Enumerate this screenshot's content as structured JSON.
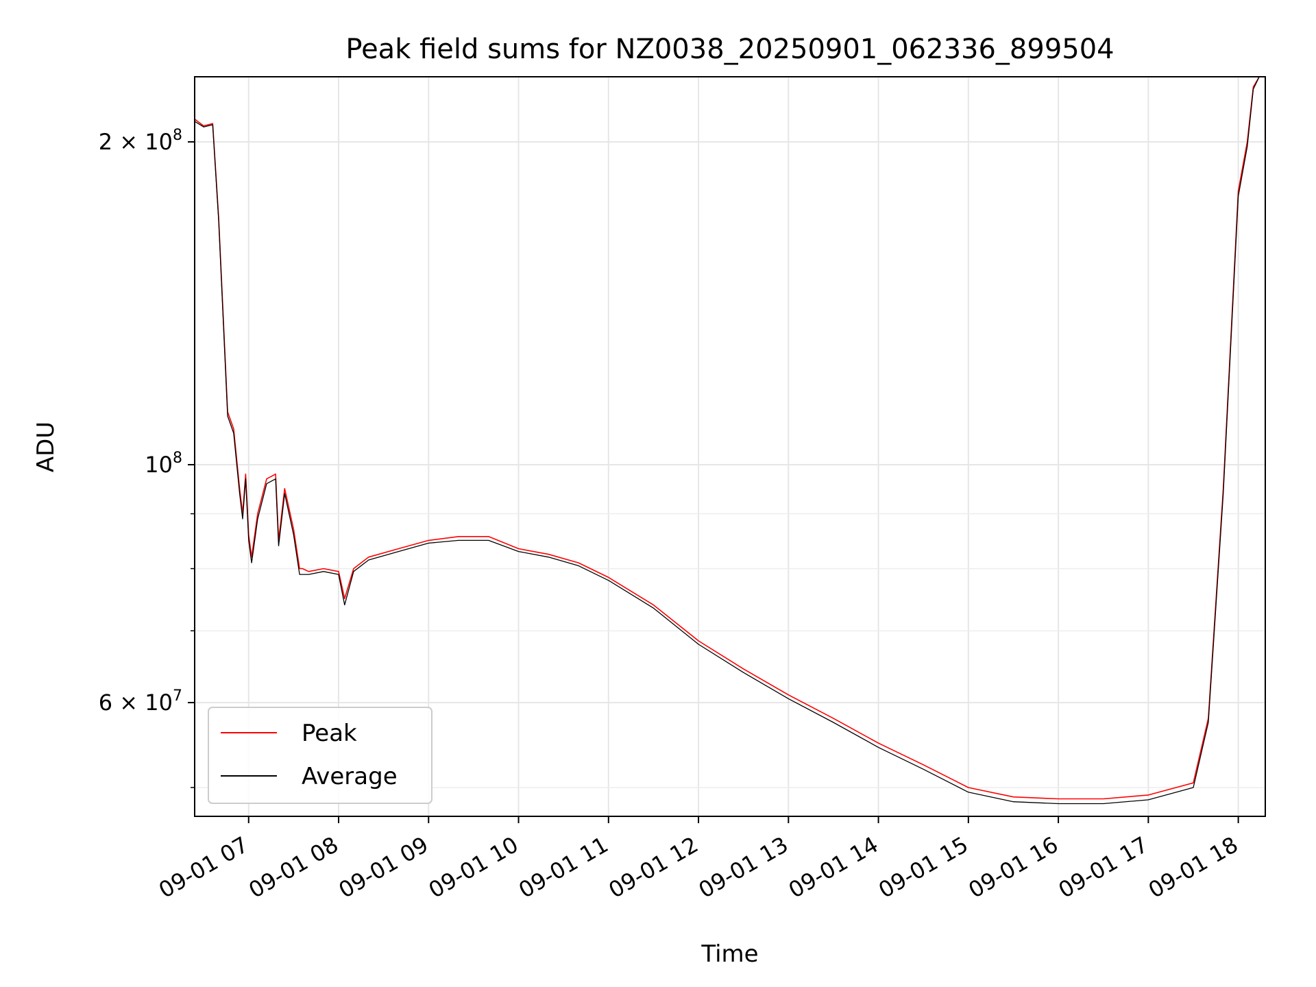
{
  "chart_data": {
    "type": "line",
    "title": "Peak field sums for NZ0038_20250901_062336_899504",
    "xlabel": "Time",
    "ylabel": "ADU",
    "yscale": "log",
    "xlim": [
      "2025-09-01 06:24",
      "2025-09-01 18:18"
    ],
    "ylim": [
      47000000,
      230000000
    ],
    "grid": true,
    "legend_position": "lower-left",
    "x_tick_labels": [
      "09-01 07",
      "09-01 08",
      "09-01 09",
      "09-01 10",
      "09-01 11",
      "09-01 12",
      "09-01 13",
      "09-01 14",
      "09-01 15",
      "09-01 16",
      "09-01 17",
      "09-01 18"
    ],
    "x_ticks": [
      "2025-09-01 07:00",
      "2025-09-01 08:00",
      "2025-09-01 09:00",
      "2025-09-01 10:00",
      "2025-09-01 11:00",
      "2025-09-01 12:00",
      "2025-09-01 13:00",
      "2025-09-01 14:00",
      "2025-09-01 15:00",
      "2025-09-01 16:00",
      "2025-09-01 17:00",
      "2025-09-01 18:00"
    ],
    "y_ticks": [
      {
        "value": 200000000,
        "base": "2 × 10",
        "exp": "8"
      },
      {
        "value": 100000000,
        "base": "10",
        "exp": "8"
      },
      {
        "value": 60000000,
        "base": "6 × 10",
        "exp": "7"
      }
    ],
    "y_minor_ticks": [
      50000000,
      70000000,
      80000000,
      90000000
    ],
    "series": [
      {
        "name": "Peak",
        "color": "#ff0000",
        "x": [
          "2025-09-01 06:24",
          "2025-09-01 06:30",
          "2025-09-01 06:36",
          "2025-09-01 06:40",
          "2025-09-01 06:46",
          "2025-09-01 06:50",
          "2025-09-01 06:54",
          "2025-09-01 06:56",
          "2025-09-01 06:58",
          "2025-09-01 07:00",
          "2025-09-01 07:02",
          "2025-09-01 07:06",
          "2025-09-01 07:12",
          "2025-09-01 07:18",
          "2025-09-01 07:20",
          "2025-09-01 07:24",
          "2025-09-01 07:30",
          "2025-09-01 07:34",
          "2025-09-01 07:36",
          "2025-09-01 07:40",
          "2025-09-01 07:50",
          "2025-09-01 08:00",
          "2025-09-01 08:04",
          "2025-09-01 08:10",
          "2025-09-01 08:20",
          "2025-09-01 08:40",
          "2025-09-01 09:00",
          "2025-09-01 09:20",
          "2025-09-01 09:40",
          "2025-09-01 10:00",
          "2025-09-01 10:20",
          "2025-09-01 10:40",
          "2025-09-01 11:00",
          "2025-09-01 11:30",
          "2025-09-01 12:00",
          "2025-09-01 12:30",
          "2025-09-01 13:00",
          "2025-09-01 13:30",
          "2025-09-01 14:00",
          "2025-09-01 14:30",
          "2025-09-01 15:00",
          "2025-09-01 15:30",
          "2025-09-01 16:00",
          "2025-09-01 16:30",
          "2025-09-01 17:00",
          "2025-09-01 17:30",
          "2025-09-01 17:40",
          "2025-09-01 17:50",
          "2025-09-01 18:00",
          "2025-09-01 18:06",
          "2025-09-01 18:10",
          "2025-09-01 18:14"
        ],
        "y": [
          210000000,
          207000000,
          208000000,
          170000000,
          112000000,
          108000000,
          95000000,
          90000000,
          98000000,
          86000000,
          82000000,
          90000000,
          97000000,
          98000000,
          85000000,
          95000000,
          87000000,
          80000000,
          80000000,
          79500000,
          80000000,
          79500000,
          75000000,
          80000000,
          82000000,
          83500000,
          85000000,
          85700000,
          85700000,
          83500000,
          82500000,
          81000000,
          78500000,
          74000000,
          68500000,
          64500000,
          61000000,
          58000000,
          55000000,
          52500000,
          50000000,
          49000000,
          48800000,
          48800000,
          49200000,
          50500000,
          58000000,
          95000000,
          180000000,
          200000000,
          225000000,
          230000000
        ]
      },
      {
        "name": "Average",
        "color": "#000000",
        "x": [
          "2025-09-01 06:24",
          "2025-09-01 06:30",
          "2025-09-01 06:36",
          "2025-09-01 06:40",
          "2025-09-01 06:46",
          "2025-09-01 06:50",
          "2025-09-01 06:54",
          "2025-09-01 06:56",
          "2025-09-01 06:58",
          "2025-09-01 07:00",
          "2025-09-01 07:02",
          "2025-09-01 07:06",
          "2025-09-01 07:12",
          "2025-09-01 07:18",
          "2025-09-01 07:20",
          "2025-09-01 07:24",
          "2025-09-01 07:30",
          "2025-09-01 07:34",
          "2025-09-01 07:36",
          "2025-09-01 07:40",
          "2025-09-01 07:50",
          "2025-09-01 08:00",
          "2025-09-01 08:04",
          "2025-09-01 08:10",
          "2025-09-01 08:20",
          "2025-09-01 08:40",
          "2025-09-01 09:00",
          "2025-09-01 09:20",
          "2025-09-01 09:40",
          "2025-09-01 10:00",
          "2025-09-01 10:20",
          "2025-09-01 10:40",
          "2025-09-01 11:00",
          "2025-09-01 11:30",
          "2025-09-01 12:00",
          "2025-09-01 12:30",
          "2025-09-01 13:00",
          "2025-09-01 13:30",
          "2025-09-01 14:00",
          "2025-09-01 14:30",
          "2025-09-01 15:00",
          "2025-09-01 15:30",
          "2025-09-01 16:00",
          "2025-09-01 16:30",
          "2025-09-01 17:00",
          "2025-09-01 17:30",
          "2025-09-01 17:40",
          "2025-09-01 17:50",
          "2025-09-01 18:00",
          "2025-09-01 18:06",
          "2025-09-01 18:10",
          "2025-09-01 18:14"
        ],
        "y": [
          209000000,
          206500000,
          207500000,
          169000000,
          111000000,
          107000000,
          94000000,
          89000000,
          97000000,
          85000000,
          81000000,
          89000000,
          96000000,
          97000000,
          84000000,
          94000000,
          86000000,
          79000000,
          79000000,
          79000000,
          79500000,
          79000000,
          74000000,
          79500000,
          81500000,
          83000000,
          84500000,
          85000000,
          85000000,
          83000000,
          82000000,
          80500000,
          78000000,
          73500000,
          68000000,
          64000000,
          60500000,
          57500000,
          54500000,
          52000000,
          49500000,
          48500000,
          48300000,
          48300000,
          48700000,
          50000000,
          57500000,
          94000000,
          178000000,
          198000000,
          224000000,
          230000000
        ]
      }
    ]
  }
}
